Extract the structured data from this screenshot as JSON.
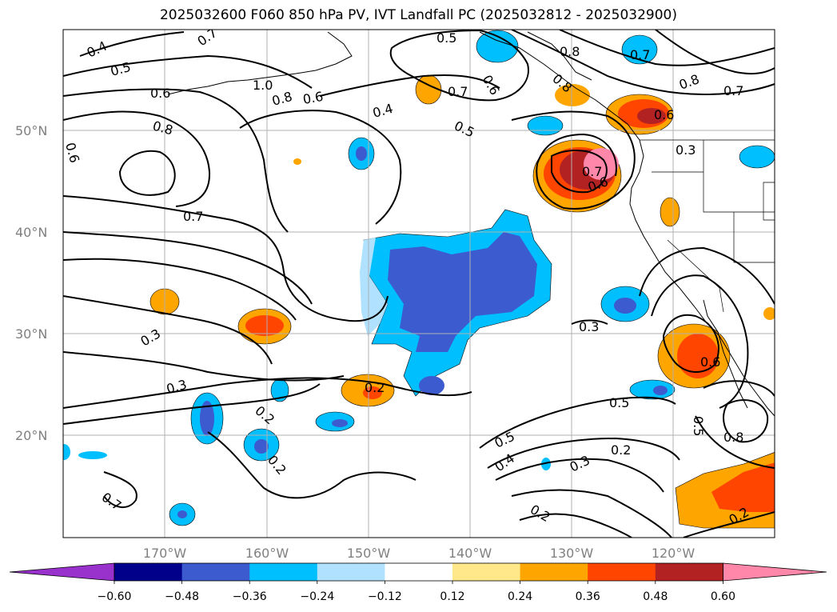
{
  "title": "2025032600 F060 850 hPa PV, IVT Landfall PC (2025032812 - 2025032900)",
  "map": {
    "lat_labels": [
      "50°N",
      "40°N",
      "30°N",
      "20°N"
    ],
    "lon_labels": [
      "170°W",
      "160°W",
      "150°W",
      "140°W",
      "130°W",
      "120°W"
    ],
    "contour_labels": [
      "0.4",
      "0.5",
      "0.7",
      "0.6",
      "1.0",
      "0.8",
      "0.6",
      "0.8",
      "0.6",
      "0.5",
      "0.8",
      "0.7",
      "0.6",
      "0.8",
      "0.7",
      "0.6",
      "0.8",
      "0.7",
      "0.4",
      "0.5",
      "0.7",
      "0.6",
      "0.3",
      "0.7",
      "0.3",
      "0.3",
      "0.2",
      "0.2",
      "0.2",
      "0.3",
      "0.5",
      "0.6",
      "0.5",
      "0.8",
      "0.5",
      "0.4",
      "0.2",
      "0.3",
      "0.2",
      "0.2"
    ]
  },
  "colorbar": {
    "ticks": [
      "−0.60",
      "−0.48",
      "−0.36",
      "−0.24",
      "−0.12",
      "0.12",
      "0.24",
      "0.36",
      "0.48",
      "0.60"
    ],
    "colors": [
      "#9932CC",
      "#00008B",
      "#3B5BCF",
      "#00BFFF",
      "#B0E2FF",
      "#FFFFFF",
      "#FFE88A",
      "#FFA500",
      "#FF4500",
      "#B22222",
      "#FF88AA"
    ]
  }
}
